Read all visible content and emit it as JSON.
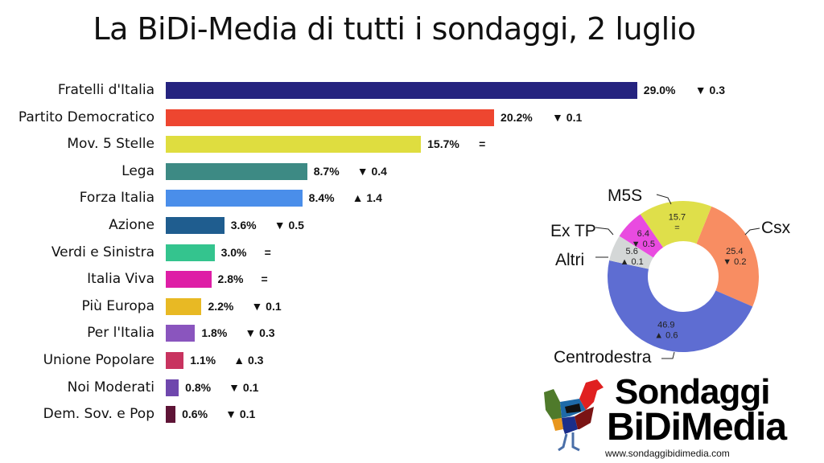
{
  "title": "La BiDi-Media di tutti i sondaggi, 2 luglio",
  "chart_data": [
    {
      "type": "bar",
      "orientation": "horizontal",
      "title": "La BiDi-Media di tutti i sondaggi, 2 luglio",
      "categories": [
        "Fratelli d'Italia",
        "Partito Democratico",
        "Mov. 5 Stelle",
        "Lega",
        "Forza Italia",
        "Azione",
        "Verdi e Sinistra",
        "Italia Viva",
        "Più Europa",
        "Per l'Italia",
        "Unione Popolare",
        "Noi Moderati",
        "Dem. Sov. e Pop"
      ],
      "values": [
        29.0,
        20.2,
        15.7,
        8.7,
        8.4,
        3.6,
        3.0,
        2.8,
        2.2,
        1.8,
        1.1,
        0.8,
        0.6
      ],
      "value_labels": [
        "29.0%",
        "20.2%",
        "15.7%",
        "8.7%",
        "8.4%",
        "3.6%",
        "3.0%",
        "2.8%",
        "2.2%",
        "1.8%",
        "1.1%",
        "0.8%",
        "0.6%"
      ],
      "changes": [
        "▼ 0.3",
        "▼ 0.1",
        "=",
        "▼ 0.4",
        "▲ 1.4",
        "▼ 0.5",
        "=",
        "=",
        "▼ 0.1",
        "▼ 0.3",
        "▲ 0.3",
        "▼ 0.1",
        "▼ 0.1"
      ],
      "colors": [
        "#25237f",
        "#ee4630",
        "#dfdd3f",
        "#3d8a84",
        "#4a8eea",
        "#1f5d8f",
        "#34c48e",
        "#de1ea6",
        "#e8b924",
        "#8a55be",
        "#c8335f",
        "#6f47ad",
        "#5e1436"
      ],
      "xlabel": "",
      "ylabel": "",
      "grid": false,
      "legend": "none"
    },
    {
      "type": "pie",
      "variant": "donut",
      "categories": [
        "Csx",
        "Centrodestra",
        "Altri",
        "Ex TP",
        "M5S"
      ],
      "values": [
        25.4,
        46.9,
        5.6,
        6.4,
        15.7
      ],
      "value_labels": [
        "25.4",
        "46.9",
        "5.6",
        "6.4",
        "15.7"
      ],
      "changes": [
        "▼ 0.2",
        "▲ 0.6",
        "▲ 0.1",
        "▼ 0.5",
        "="
      ],
      "colors": [
        "#f88d62",
        "#5e6dd2",
        "#d4d7d7",
        "#e94be0",
        "#dfdf4a"
      ]
    }
  ],
  "donut_labels": {
    "csx": "Csx",
    "centrodestra": "Centrodestra",
    "altri": "Altri",
    "extp": "Ex TP",
    "m5s": "M5S"
  },
  "logo": {
    "line1": "Sondaggi",
    "line2": "BiDiMedia",
    "url": "www.sondaggibidimedia.com"
  }
}
